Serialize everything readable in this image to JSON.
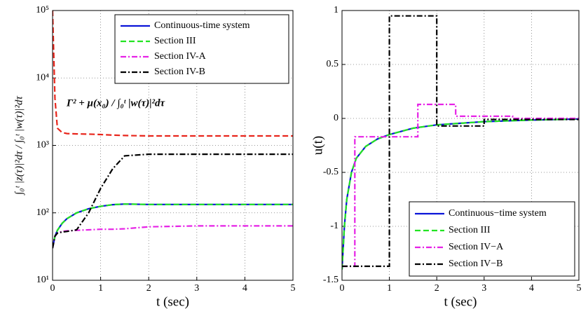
{
  "chart_data": [
    {
      "type": "line",
      "xlabel": "t (sec)",
      "ylabel": "∫₀ᵗ |z(τ)|²dτ / ∫₀ᵗ |w(τ)|²dτ",
      "annotation": "Γ² + μ(x₀) / ∫₀ᵗ |w(τ)|²dτ",
      "xlim": [
        0,
        5
      ],
      "xticks": [
        0,
        1,
        2,
        3,
        4,
        5
      ],
      "ylim": [
        10,
        100000
      ],
      "log_scale": true,
      "yticks": [
        {
          "value": 10,
          "label": "10¹"
        },
        {
          "value": 100,
          "label": "10²"
        },
        {
          "value": 1000,
          "label": "10³"
        },
        {
          "value": 10000,
          "label": "10⁴"
        },
        {
          "value": 100000,
          "label": "10⁵"
        }
      ],
      "grid": true,
      "legend": "upper right",
      "series": [
        {
          "color": "#e8251b",
          "style": "dashed",
          "x": [
            0,
            0.05,
            0.1,
            0.2,
            0.3,
            0.5,
            0.75,
            1,
            1.25,
            1.5,
            2,
            3,
            4,
            5
          ],
          "values": [
            100000,
            5000,
            1800,
            1550,
            1500,
            1480,
            1470,
            1450,
            1420,
            1400,
            1380,
            1380,
            1380,
            1380
          ]
        },
        {
          "name": "Continuous-time system",
          "color": "#0a14d8",
          "style": "solid",
          "x": [
            0,
            0.05,
            0.1,
            0.2,
            0.3,
            0.5,
            0.75,
            1,
            1.25,
            1.5,
            2,
            3,
            4,
            5
          ],
          "values": [
            30,
            45,
            55,
            70,
            82,
            100,
            115,
            125,
            132,
            135,
            133,
            133,
            133,
            133
          ]
        },
        {
          "name": "Section III",
          "color": "#22e422",
          "style": "dashed",
          "x": [
            0,
            0.05,
            0.1,
            0.2,
            0.3,
            0.5,
            0.75,
            1,
            1.25,
            1.5,
            2,
            3,
            4,
            5
          ],
          "values": [
            30,
            45,
            55,
            70,
            82,
            100,
            115,
            125,
            132,
            135,
            133,
            133,
            133,
            133
          ]
        },
        {
          "name": "Section IV-A",
          "color": "#e622e6",
          "style": "dashdot",
          "x": [
            0,
            0.05,
            0.1,
            0.2,
            0.3,
            0.5,
            0.75,
            1,
            1.25,
            1.5,
            2,
            3,
            4,
            5
          ],
          "values": [
            30,
            45,
            50,
            53,
            54,
            55,
            56,
            57,
            57,
            58,
            62,
            64,
            64,
            64
          ]
        },
        {
          "name": "Section IV-B",
          "color": "#000000",
          "style": "dashdot",
          "x": [
            0,
            0.05,
            0.1,
            0.2,
            0.3,
            0.5,
            0.75,
            1,
            1.25,
            1.5,
            2,
            3,
            4,
            5
          ],
          "values": [
            30,
            45,
            50,
            52,
            53,
            56,
            100,
            230,
            450,
            700,
            740,
            740,
            740,
            740
          ]
        }
      ]
    },
    {
      "type": "line",
      "xlabel": "t (sec)",
      "ylabel": "u(t)",
      "xlim": [
        0,
        5
      ],
      "xticks": [
        0,
        1,
        2,
        3,
        4,
        5
      ],
      "ylim": [
        -1.5,
        1
      ],
      "yticks": [
        -1.5,
        -1,
        -0.5,
        0,
        0.5,
        1
      ],
      "grid": true,
      "legend": "lower right",
      "series": [
        {
          "name": "Continuous−time system",
          "color": "#0a14d8",
          "style": "solid",
          "x": [
            0,
            0.05,
            0.1,
            0.2,
            0.3,
            0.5,
            0.75,
            1,
            1.5,
            2,
            3,
            4,
            5
          ],
          "values": [
            -1.4,
            -1.0,
            -0.75,
            -0.5,
            -0.37,
            -0.26,
            -0.19,
            -0.15,
            -0.09,
            -0.06,
            -0.03,
            -0.015,
            -0.005
          ]
        },
        {
          "name": "Section III",
          "color": "#22e422",
          "style": "dashed",
          "x": [
            0,
            0.05,
            0.1,
            0.2,
            0.3,
            0.5,
            0.75,
            1,
            1.5,
            2,
            3,
            4,
            5
          ],
          "values": [
            -1.4,
            -1.0,
            -0.75,
            -0.5,
            -0.37,
            -0.26,
            -0.19,
            -0.15,
            -0.09,
            -0.06,
            -0.03,
            -0.015,
            -0.005
          ]
        },
        {
          "name": "Section IV−A",
          "color": "#e622e6",
          "style": "dashdot",
          "x": [
            0,
            0.27,
            0.27,
            1.6,
            1.6,
            2.4,
            2.4,
            3.6,
            3.6,
            5
          ],
          "values": [
            -1.37,
            -1.37,
            -0.17,
            -0.17,
            0.13,
            0.13,
            0.02,
            0.02,
            0,
            0
          ]
        },
        {
          "name": "Section IV−B",
          "color": "#000000",
          "style": "dashdot",
          "x": [
            0,
            1,
            1,
            2,
            2,
            3,
            3,
            5
          ],
          "values": [
            -1.37,
            -1.37,
            0.95,
            0.95,
            -0.07,
            -0.07,
            -0.01,
            -0.01
          ]
        }
      ]
    }
  ]
}
